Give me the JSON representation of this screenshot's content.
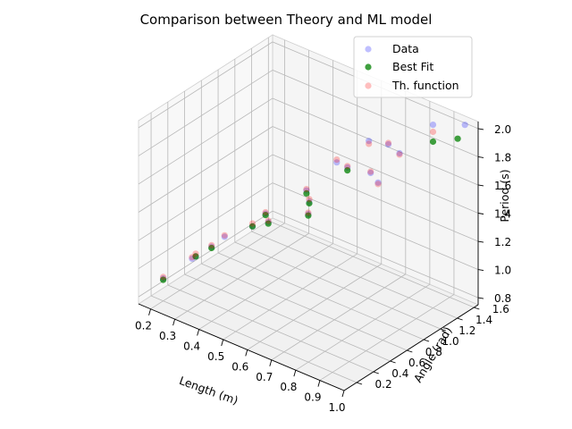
{
  "chart_data": {
    "type": "scatter",
    "projection": "3d",
    "title": "Comparison between Theory and ML model",
    "xlabel": "Length (m)",
    "ylabel": "Angle (rad)",
    "zlabel": "Period (s)",
    "xlim": [
      0.15,
      1.0
    ],
    "ylim": [
      0.05,
      1.65
    ],
    "zlim": [
      0.75,
      2.05
    ],
    "xticks": [
      "0.2",
      "0.3",
      "0.4",
      "0.5",
      "0.6",
      "0.7",
      "0.8",
      "0.9",
      "1.0"
    ],
    "yticks": [
      "0.2",
      "0.4",
      "0.6",
      "0.8",
      "1.0",
      "1.2",
      "1.4",
      "1.6"
    ],
    "zticks": [
      "0.8",
      "1.0",
      "1.2",
      "1.4",
      "1.6",
      "1.8",
      "2.0"
    ],
    "grid": true,
    "legend_position": "top-right",
    "series": [
      {
        "name": "Data",
        "color": "#0000ff",
        "alpha": 0.25,
        "points": [
          [
            0.2,
            0.2,
            0.91
          ],
          [
            0.25,
            0.4,
            1.01
          ],
          [
            0.3,
            0.3,
            1.1
          ],
          [
            0.35,
            0.5,
            1.2
          ],
          [
            0.4,
            0.2,
            1.28
          ],
          [
            0.45,
            0.7,
            1.36
          ],
          [
            0.5,
            0.4,
            1.42
          ],
          [
            0.55,
            0.9,
            1.52
          ],
          [
            0.6,
            0.3,
            1.56
          ],
          [
            0.65,
            1.1,
            1.68
          ],
          [
            0.7,
            0.5,
            1.7
          ],
          [
            0.75,
            1.3,
            1.84
          ],
          [
            0.8,
            0.2,
            1.8
          ],
          [
            0.85,
            0.8,
            1.9
          ],
          [
            0.9,
            1.4,
            2.05
          ],
          [
            0.95,
            0.6,
            1.98
          ],
          [
            0.98,
            1.55,
            2.05
          ],
          [
            0.9,
            1.0,
            2.0
          ],
          [
            0.6,
            1.5,
            1.68
          ],
          [
            0.45,
            1.55,
            1.4
          ]
        ]
      },
      {
        "name": "Best Fit",
        "color": "#008000",
        "alpha": 0.75,
        "points": [
          [
            0.2,
            0.2,
            0.9
          ],
          [
            0.3,
            0.3,
            1.1
          ],
          [
            0.4,
            0.2,
            1.27
          ],
          [
            0.5,
            0.4,
            1.42
          ],
          [
            0.6,
            0.3,
            1.55
          ],
          [
            0.7,
            0.5,
            1.69
          ],
          [
            0.8,
            0.2,
            1.79
          ],
          [
            0.9,
            1.4,
            1.93
          ],
          [
            0.95,
            1.55,
            1.93
          ],
          [
            0.65,
            1.1,
            1.66
          ],
          [
            0.55,
            0.9,
            1.5
          ],
          [
            0.45,
            0.7,
            1.35
          ]
        ]
      },
      {
        "name": "Th. function",
        "color": "#ff0000",
        "alpha": 0.25,
        "points": [
          [
            0.2,
            0.2,
            0.92
          ],
          [
            0.25,
            0.4,
            1.02
          ],
          [
            0.3,
            0.3,
            1.12
          ],
          [
            0.35,
            0.5,
            1.21
          ],
          [
            0.4,
            0.2,
            1.29
          ],
          [
            0.45,
            0.7,
            1.37
          ],
          [
            0.5,
            0.4,
            1.44
          ],
          [
            0.55,
            0.9,
            1.53
          ],
          [
            0.6,
            0.3,
            1.57
          ],
          [
            0.65,
            1.1,
            1.69
          ],
          [
            0.7,
            0.5,
            1.72
          ],
          [
            0.75,
            1.3,
            1.85
          ],
          [
            0.8,
            0.2,
            1.81
          ],
          [
            0.85,
            0.8,
            1.91
          ],
          [
            0.9,
            1.4,
            2.0
          ],
          [
            0.95,
            0.6,
            1.97
          ],
          [
            0.6,
            1.5,
            1.66
          ],
          [
            0.45,
            1.55,
            1.42
          ],
          [
            0.9,
            1.0,
            1.99
          ]
        ]
      }
    ]
  }
}
